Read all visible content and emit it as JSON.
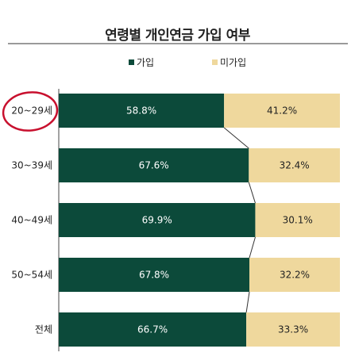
{
  "chart_data": {
    "type": "bar",
    "orientation": "horizontal",
    "stacked": true,
    "title": "연령별 개인연금 가입 여부",
    "categories": [
      "20~29세",
      "30~39세",
      "40~49세",
      "50~54세",
      "전체"
    ],
    "series": [
      {
        "name": "가입",
        "color": "#0c4a3a",
        "values": [
          58.8,
          67.6,
          69.9,
          67.8,
          66.7
        ],
        "labels": [
          "58.8%",
          "67.6%",
          "69.9%",
          "67.8%",
          "66.7%"
        ]
      },
      {
        "name": "미가입",
        "color": "#efd89d",
        "values": [
          41.2,
          32.4,
          30.1,
          32.2,
          33.3
        ],
        "labels": [
          "41.2%",
          "32.4%",
          "30.1%",
          "32.2%",
          "33.3%"
        ]
      }
    ],
    "xlim": [
      0,
      100
    ],
    "legend_position": "top",
    "annotation": {
      "type": "circle",
      "target_category": "20~29세",
      "color": "#c8102e"
    }
  }
}
